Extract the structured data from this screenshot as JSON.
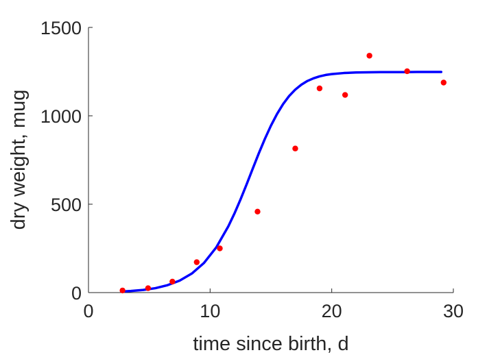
{
  "chart_data": {
    "type": "scatter",
    "title": "",
    "xlabel": "time since birth, d",
    "ylabel": "dry weight, mug",
    "xlim": [
      0,
      30
    ],
    "ylim": [
      0,
      1500
    ],
    "xticks": [
      "0",
      "10",
      "20",
      "30"
    ],
    "yticks": [
      "0",
      "500",
      "1000",
      "1500"
    ],
    "grid": false,
    "legend": "none",
    "series": [
      {
        "kind": "points",
        "color": "#ff0000",
        "x": [
          2.8,
          4.9,
          6.9,
          8.9,
          10.8,
          13.9,
          17.0,
          19.0,
          21.1,
          23.1,
          26.2,
          29.2
        ],
        "y": [
          12,
          25,
          62,
          172,
          250,
          458,
          815,
          1155,
          1118,
          1340,
          1252,
          1188
        ]
      },
      {
        "kind": "line",
        "color": "#0000ff",
        "x": [
          2.7,
          3.5,
          4.5,
          5.5,
          6.5,
          7.5,
          8.5,
          9.5,
          10.5,
          11.5,
          12.0,
          12.5,
          13.0,
          13.5,
          14.0,
          14.5,
          15.0,
          15.5,
          16.0,
          16.5,
          17.0,
          17.5,
          18.0,
          18.5,
          19.0,
          19.5,
          20.0,
          21.0,
          22.0,
          23.0,
          24.0,
          25.0,
          26.0,
          27.0,
          28.0,
          29.0
        ],
        "y": [
          6,
          9,
          15,
          25,
          42,
          68,
          108,
          168,
          255,
          375,
          447,
          527,
          612,
          700,
          787,
          869,
          944,
          1010,
          1066,
          1112,
          1148,
          1176,
          1197,
          1212,
          1223,
          1231,
          1236,
          1242,
          1245,
          1246,
          1247,
          1247,
          1247,
          1248,
          1248,
          1248
        ]
      }
    ]
  }
}
